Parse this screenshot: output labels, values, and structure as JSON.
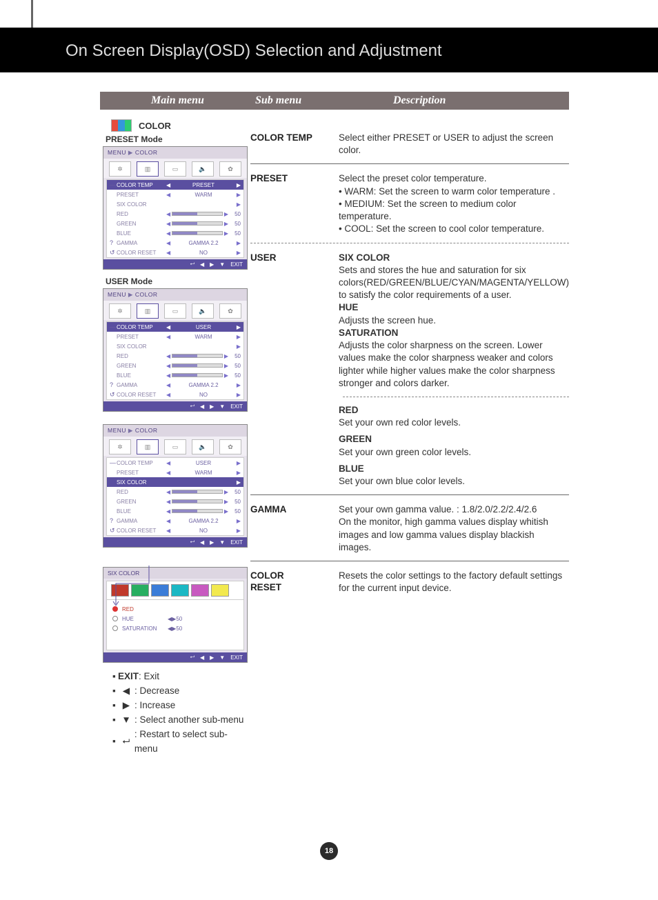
{
  "page": {
    "title": "On Screen Display(OSD) Selection and Adjustment",
    "headers": {
      "main": "Main menu",
      "sub": "Sub menu",
      "desc": "Description"
    },
    "section_label": "COLOR",
    "preset_mode_label": "PRESET Mode",
    "user_mode_label": "USER  Mode",
    "page_number": "18"
  },
  "osd": {
    "breadcrumb_menu": "MENU",
    "breadcrumb_color": "COLOR",
    "rows": {
      "color_temp": "COLOR TEMP",
      "preset": "PRESET",
      "six_color": "SIX COLOR",
      "red": "RED",
      "green": "GREEN",
      "blue": "BLUE",
      "gamma": "GAMMA",
      "color_reset": "COLOR RESET"
    },
    "values": {
      "preset": "PRESET",
      "user": "USER",
      "warm": "WARM",
      "gamma": "GAMMA 2.2",
      "no": "NO",
      "fifty": "50"
    },
    "exit": "EXIT",
    "six_color_title": "SIX COLOR",
    "radio": {
      "red": "RED",
      "hue": "HUE",
      "saturation": "SATURATION"
    },
    "swatch_colors": [
      "#c0392b",
      "#27ae60",
      "#3b7dd8",
      "#1bb8c4",
      "#c85ac0",
      "#f2e94e"
    ]
  },
  "entries": {
    "color_temp": {
      "sub": "COLOR TEMP",
      "desc": "Select either PRESET or USER to adjust the screen color."
    },
    "preset": {
      "sub": "PRESET",
      "line1": "Select the preset color temperature.",
      "warm": "• WARM: Set the screen to warm color temperature .",
      "medium": "• MEDIUM: Set the screen to medium color temperature.",
      "cool": "• COOL: Set the screen to cool color temperature."
    },
    "user": {
      "sub": "USER",
      "six_color_h": "SIX COLOR",
      "six_color": "Sets and stores the hue and saturation for six colors(RED/GREEN/BLUE/CYAN/MAGENTA/YELLOW) to satisfy the color requirements of a user.",
      "hue_h": "HUE",
      "hue": "Adjusts the screen hue.",
      "sat_h": "SATURATION",
      "sat": "Adjusts the color sharpness on the screen. Lower values make the color sharpness weaker and colors lighter while higher values make the color sharpness stronger and colors darker.",
      "red_h": "RED",
      "red": "Set your own red color levels.",
      "green_h": "GREEN",
      "green": "Set your own green color levels.",
      "blue_h": "BLUE",
      "blue": "Set your own blue color levels."
    },
    "gamma": {
      "sub": "GAMMA",
      "l1": "Set your own gamma value. : 1.8/2.0/2.2/2.4/2.6",
      "l2": "On the monitor, high gamma values display whitish images and low gamma values display blackish images."
    },
    "reset": {
      "sub1": "COLOR",
      "sub2": "RESET",
      "desc": "Resets the color settings to the factory default settings for the current input device."
    }
  },
  "legend": {
    "exit_b": "EXIT",
    "exit": " : Exit",
    "decrease": ": Decrease",
    "increase": ": Increase",
    "select": ": Select another sub-menu",
    "restart": ": Restart to select sub-menu"
  },
  "colors": {
    "header_bg": "#7a6f6f",
    "osd_accent": "#5a4fa0",
    "text": "#333333"
  }
}
